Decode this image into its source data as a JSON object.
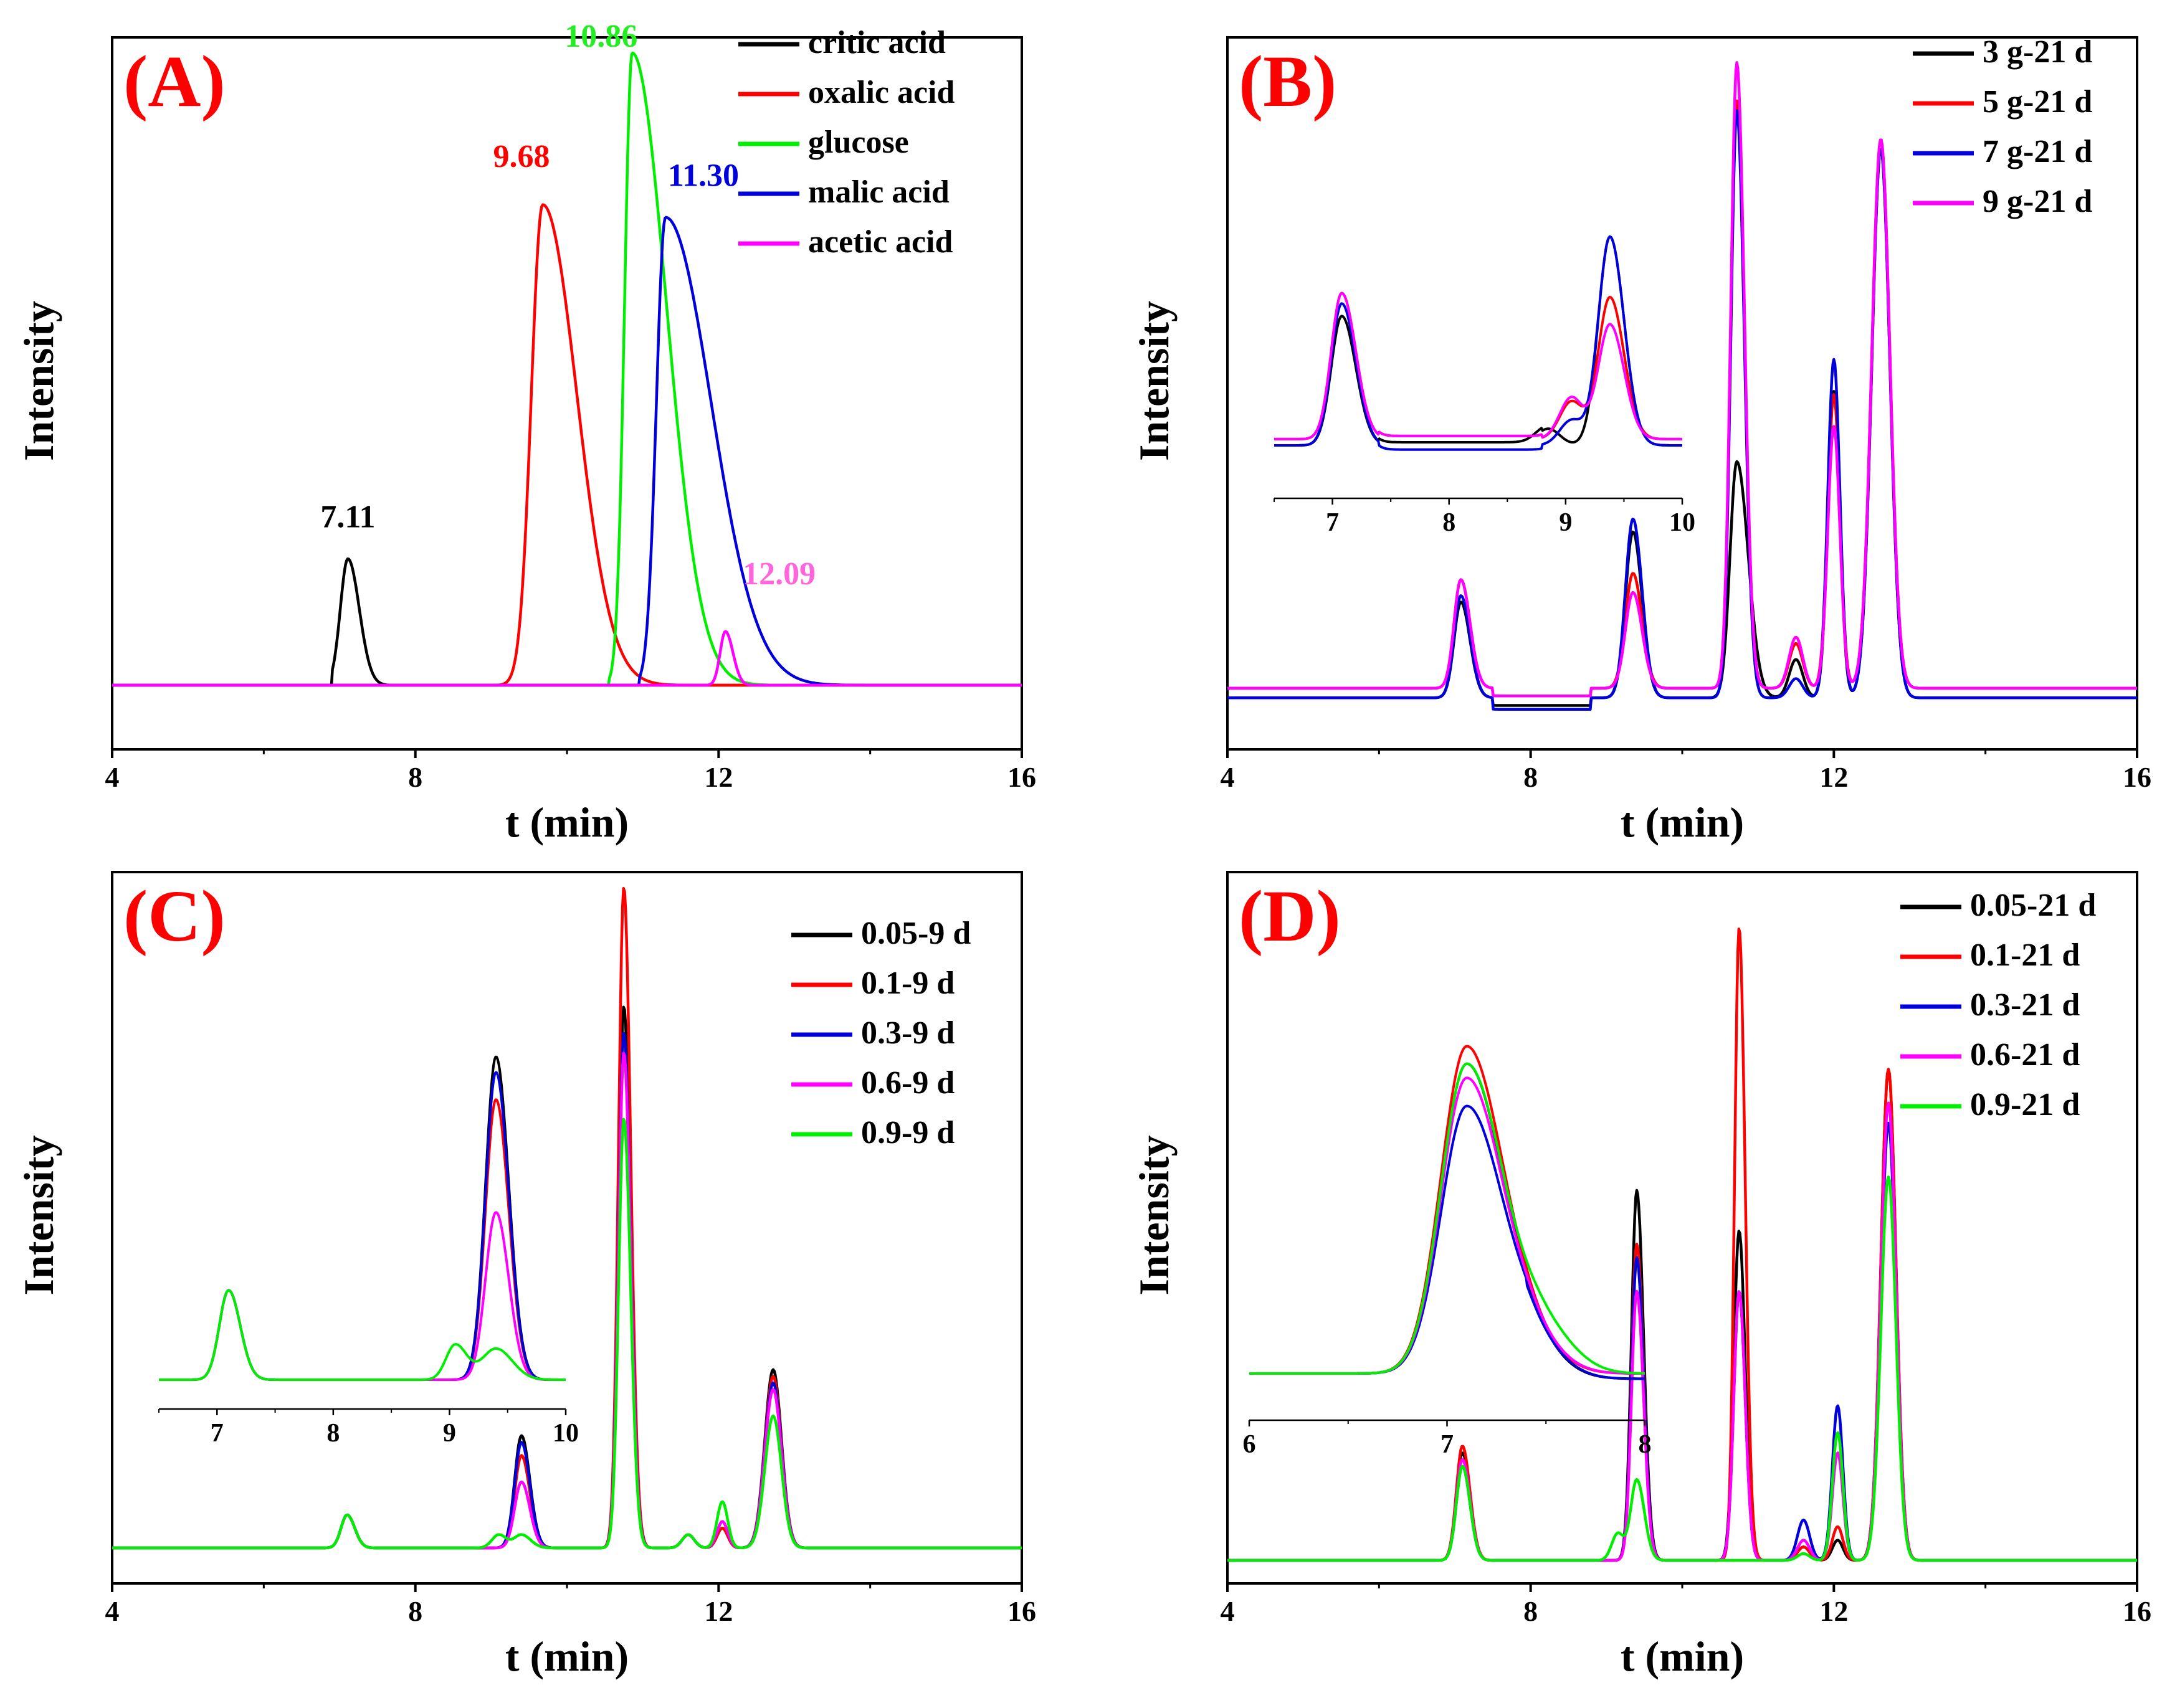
{
  "chart_data": [
    {
      "panel_label": "(A)",
      "type": "line",
      "xlabel": "t (min)",
      "ylabel": "Intensity",
      "xlim": [
        4,
        16
      ],
      "ylim": [
        -0.05,
        1.05
      ],
      "xticks": [
        4,
        8,
        12,
        16
      ],
      "legend_position": "top-right",
      "series": [
        {
          "name": "critic acid",
          "color": "#000000",
          "peaks": [
            [
              7.11,
              0.2,
              0.1,
              0.15
            ]
          ],
          "start": 6.9
        },
        {
          "name": "oxalic acid",
          "color": "#ff0000",
          "peaks": [
            [
              9.68,
              0.76,
              0.15,
              0.45
            ]
          ],
          "start": 8.9
        },
        {
          "name": "glucose",
          "color": "#00ee00",
          "peaks": [
            [
              10.86,
              1.0,
              0.1,
              0.45
            ]
          ],
          "start": 10.55
        },
        {
          "name": "malic acid",
          "color": "#0000dd",
          "peaks": [
            [
              11.3,
              0.74,
              0.12,
              0.6
            ]
          ],
          "start": 10.95
        },
        {
          "name": "acetic acid",
          "color": "#ff00ff",
          "peaks": [
            [
              12.09,
              0.085,
              0.07,
              0.1
            ]
          ],
          "start": 11.85
        }
      ],
      "annotations": [
        {
          "text": "7.11",
          "x": 7.11,
          "y": 0.24,
          "color": "#000000"
        },
        {
          "text": "9.68",
          "x": 9.4,
          "y": 0.81,
          "color": "#ff0000"
        },
        {
          "text": "10.86",
          "x": 10.45,
          "y": 1.0,
          "color": "#22ee22"
        },
        {
          "text": "11.30",
          "x": 11.8,
          "y": 0.78,
          "color": "#0000dd"
        },
        {
          "text": "12.09",
          "x": 12.8,
          "y": 0.15,
          "color": "#ff66dd"
        }
      ]
    },
    {
      "panel_label": "(B)",
      "type": "line",
      "xlabel": "t (min)",
      "ylabel": "Intensity",
      "xlim": [
        4,
        16
      ],
      "ylim": [
        -0.05,
        1.05
      ],
      "xticks": [
        4,
        8,
        12,
        16
      ],
      "legend_position": "top-right",
      "series": [
        {
          "name": "3 g-21 d",
          "color": "#000000",
          "peaks": [
            [
              7.08,
              0.15,
              0.09,
              0.12
            ],
            [
              9.35,
              0.26,
              0.1,
              0.12
            ],
            [
              10.72,
              0.37,
              0.09,
              0.15
            ],
            [
              11.5,
              0.06,
              0.09,
              0.09
            ],
            [
              12.0,
              0.48,
              0.08,
              0.08
            ],
            [
              12.62,
              0.86,
              0.12,
              0.12
            ]
          ]
        },
        {
          "name": "5 g-21 d",
          "color": "#ff0000",
          "peaks": [
            [
              7.08,
              0.17,
              0.09,
              0.12
            ],
            [
              9.35,
              0.18,
              0.1,
              0.12
            ],
            [
              10.72,
              0.92,
              0.08,
              0.1
            ],
            [
              11.5,
              0.07,
              0.09,
              0.09
            ],
            [
              12.0,
              0.46,
              0.08,
              0.08
            ],
            [
              12.62,
              0.86,
              0.12,
              0.12
            ]
          ]
        },
        {
          "name": "7 g-21 d",
          "color": "#0000dd",
          "peaks": [
            [
              7.08,
              0.16,
              0.09,
              0.12
            ],
            [
              9.35,
              0.28,
              0.1,
              0.12
            ],
            [
              10.72,
              0.92,
              0.08,
              0.1
            ],
            [
              11.5,
              0.03,
              0.09,
              0.09
            ],
            [
              12.0,
              0.53,
              0.08,
              0.08
            ],
            [
              12.62,
              0.86,
              0.12,
              0.12
            ]
          ]
        },
        {
          "name": "9 g-21 d",
          "color": "#ff00ff",
          "peaks": [
            [
              7.08,
              0.17,
              0.09,
              0.12
            ],
            [
              9.35,
              0.15,
              0.1,
              0.12
            ],
            [
              10.72,
              0.98,
              0.08,
              0.1
            ],
            [
              11.5,
              0.08,
              0.09,
              0.09
            ],
            [
              12.0,
              0.41,
              0.08,
              0.08
            ],
            [
              12.62,
              0.86,
              0.12,
              0.12
            ]
          ]
        }
      ],
      "inset": {
        "xlim": [
          6.5,
          10
        ],
        "xticks": [
          7,
          8,
          9,
          10
        ]
      }
    },
    {
      "panel_label": "(C)",
      "type": "line",
      "xlabel": "t (min)",
      "ylabel": "Intensity",
      "xlim": [
        4,
        16
      ],
      "ylim": [
        -0.05,
        1.05
      ],
      "xticks": [
        4,
        8,
        12,
        16
      ],
      "legend_position": "top-right",
      "series": [
        {
          "name": "0.05-9 d",
          "color": "#000000",
          "peaks": [
            [
              7.1,
              0.05,
              0.08,
              0.1
            ],
            [
              9.4,
              0.17,
              0.09,
              0.11
            ],
            [
              10.75,
              0.82,
              0.07,
              0.09
            ],
            [
              11.6,
              0.02,
              0.08,
              0.08
            ],
            [
              12.05,
              0.03,
              0.07,
              0.07
            ],
            [
              12.72,
              0.27,
              0.11,
              0.11
            ]
          ]
        },
        {
          "name": "0.1-9 d",
          "color": "#ff0000",
          "peaks": [
            [
              7.1,
              0.05,
              0.08,
              0.1
            ],
            [
              9.4,
              0.14,
              0.09,
              0.11
            ],
            [
              10.75,
              1.0,
              0.07,
              0.09
            ],
            [
              11.6,
              0.02,
              0.08,
              0.08
            ],
            [
              12.05,
              0.03,
              0.07,
              0.07
            ],
            [
              12.72,
              0.26,
              0.11,
              0.11
            ]
          ]
        },
        {
          "name": "0.3-9 d",
          "color": "#0000dd",
          "peaks": [
            [
              7.1,
              0.05,
              0.08,
              0.1
            ],
            [
              9.4,
              0.16,
              0.09,
              0.11
            ],
            [
              10.75,
              0.78,
              0.07,
              0.09
            ],
            [
              11.6,
              0.02,
              0.08,
              0.08
            ],
            [
              12.05,
              0.04,
              0.07,
              0.07
            ],
            [
              12.72,
              0.25,
              0.11,
              0.11
            ]
          ]
        },
        {
          "name": "0.6-9 d",
          "color": "#ff00ff",
          "peaks": [
            [
              7.1,
              0.05,
              0.08,
              0.1
            ],
            [
              9.4,
              0.1,
              0.09,
              0.11
            ],
            [
              10.75,
              0.75,
              0.07,
              0.09
            ],
            [
              11.6,
              0.02,
              0.08,
              0.08
            ],
            [
              12.05,
              0.04,
              0.07,
              0.07
            ],
            [
              12.72,
              0.24,
              0.11,
              0.11
            ]
          ]
        },
        {
          "name": "0.9-9 d",
          "color": "#00ee00",
          "peaks": [
            [
              7.1,
              0.05,
              0.08,
              0.1
            ],
            [
              9.1,
              0.02,
              0.09,
              0.1
            ],
            [
              9.4,
              0.02,
              0.1,
              0.12
            ],
            [
              10.75,
              0.65,
              0.07,
              0.09
            ],
            [
              11.6,
              0.02,
              0.08,
              0.08
            ],
            [
              12.05,
              0.07,
              0.07,
              0.07
            ],
            [
              12.72,
              0.2,
              0.11,
              0.11
            ]
          ]
        }
      ],
      "inset": {
        "xlim": [
          6.5,
          10
        ],
        "xticks": [
          7,
          8,
          9,
          10
        ]
      }
    },
    {
      "panel_label": "(D)",
      "type": "line",
      "xlabel": "t (min)",
      "ylabel": "Intensity",
      "xlim": [
        4,
        16
      ],
      "ylim": [
        -0.05,
        1.05
      ],
      "xticks": [
        4,
        8,
        12,
        16
      ],
      "legend_position": "top-right",
      "series": [
        {
          "name": "0.05-21 d",
          "color": "#000000",
          "peaks": [
            [
              7.1,
              0.16,
              0.08,
              0.1
            ],
            [
              9.4,
              0.55,
              0.07,
              0.09
            ],
            [
              10.75,
              0.49,
              0.07,
              0.08
            ],
            [
              11.6,
              0.02,
              0.08,
              0.08
            ],
            [
              12.05,
              0.03,
              0.07,
              0.07
            ],
            [
              12.72,
              0.73,
              0.1,
              0.1
            ]
          ]
        },
        {
          "name": "0.1-21 d",
          "color": "#ff0000",
          "peaks": [
            [
              7.1,
              0.17,
              0.08,
              0.1
            ],
            [
              9.4,
              0.47,
              0.07,
              0.09
            ],
            [
              10.75,
              0.94,
              0.06,
              0.08
            ],
            [
              11.6,
              0.02,
              0.08,
              0.08
            ],
            [
              12.05,
              0.05,
              0.07,
              0.07
            ],
            [
              12.72,
              0.73,
              0.1,
              0.1
            ]
          ]
        },
        {
          "name": "0.3-21 d",
          "color": "#0000dd",
          "peaks": [
            [
              7.1,
              0.14,
              0.08,
              0.1
            ],
            [
              9.4,
              0.45,
              0.07,
              0.09
            ],
            [
              10.75,
              0.4,
              0.07,
              0.08
            ],
            [
              11.6,
              0.06,
              0.08,
              0.08
            ],
            [
              12.05,
              0.23,
              0.07,
              0.07
            ],
            [
              12.72,
              0.65,
              0.1,
              0.1
            ]
          ]
        },
        {
          "name": "0.6-21 d",
          "color": "#ff00ff",
          "peaks": [
            [
              7.1,
              0.15,
              0.08,
              0.1
            ],
            [
              9.4,
              0.4,
              0.07,
              0.09
            ],
            [
              10.75,
              0.4,
              0.07,
              0.08
            ],
            [
              11.6,
              0.03,
              0.08,
              0.08
            ],
            [
              12.05,
              0.16,
              0.07,
              0.07
            ],
            [
              12.72,
              0.68,
              0.1,
              0.1
            ]
          ]
        },
        {
          "name": "0.9-21 d",
          "color": "#00ee00",
          "peaks": [
            [
              7.1,
              0.14,
              0.08,
              0.1
            ],
            [
              9.15,
              0.04,
              0.08,
              0.08
            ],
            [
              9.4,
              0.12,
              0.08,
              0.1
            ],
            [
              11.6,
              0.01,
              0.08,
              0.08
            ],
            [
              12.05,
              0.19,
              0.07,
              0.07
            ],
            [
              12.72,
              0.57,
              0.1,
              0.1
            ]
          ]
        }
      ],
      "inset": {
        "xlim": [
          6,
          8
        ],
        "xticks": [
          6,
          7,
          8
        ]
      }
    }
  ]
}
